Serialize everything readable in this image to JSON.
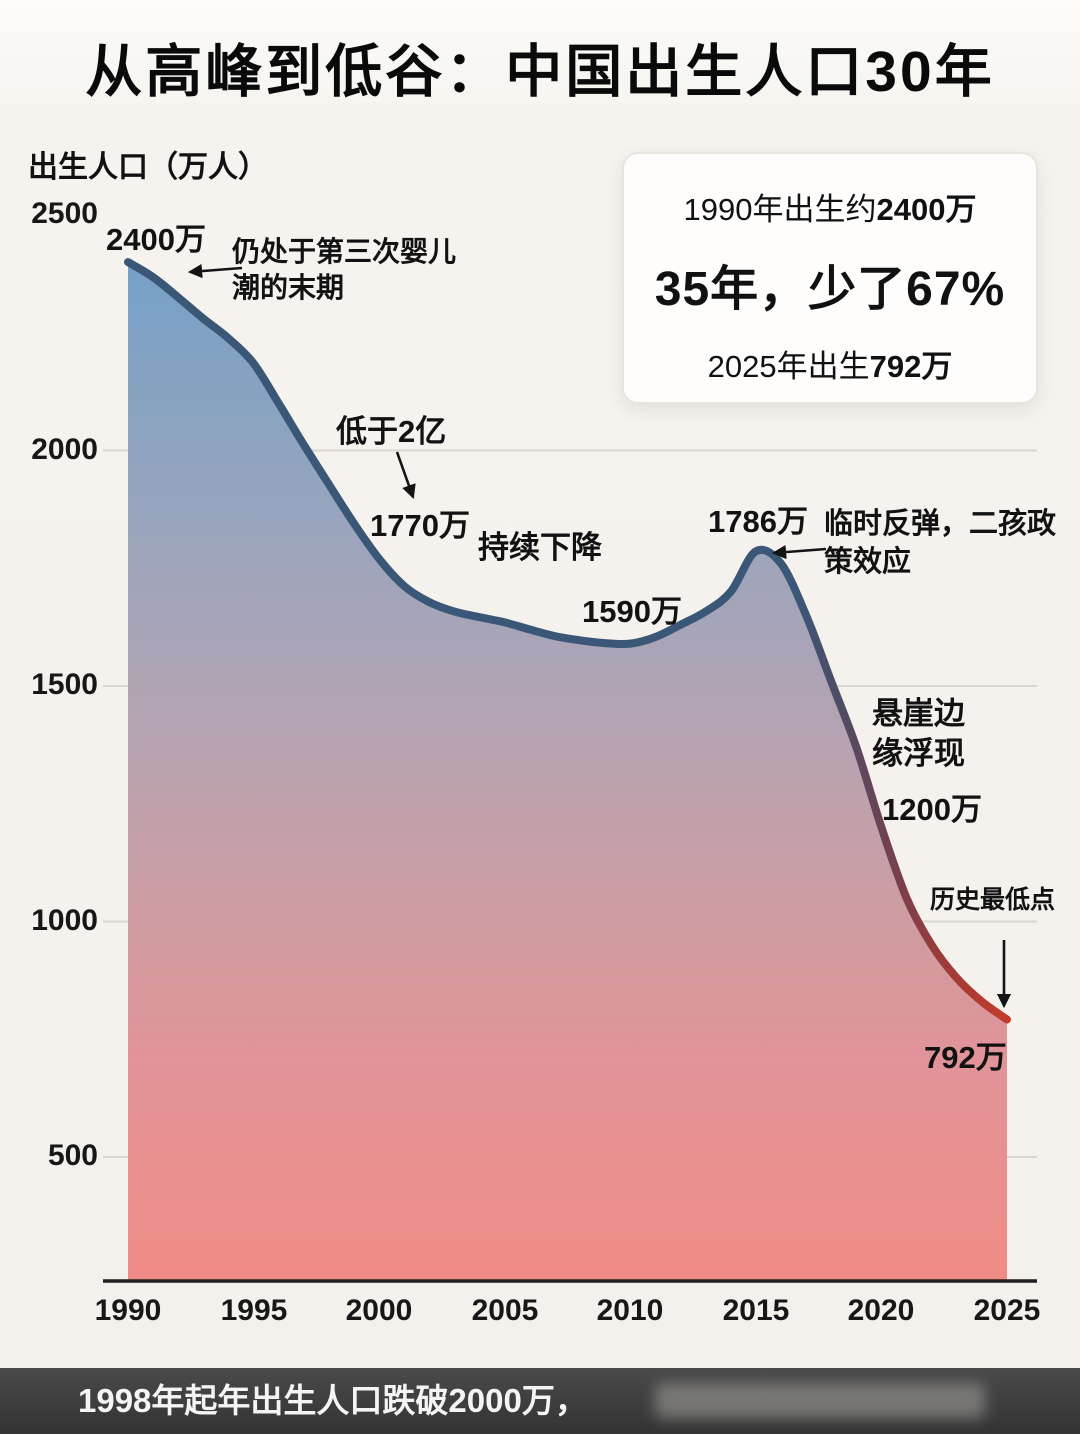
{
  "page": {
    "title": "从高峰到低谷：中国出生人口30年"
  },
  "y_axis": {
    "label": "出生人口（万人）",
    "ticks": [
      2500,
      2000,
      1500,
      1000,
      500
    ]
  },
  "x_axis": {
    "ticks": [
      1990,
      1995,
      2000,
      2005,
      2010,
      2015,
      2020,
      2025
    ]
  },
  "chart_data": {
    "type": "area",
    "title": "从高峰到低谷：中国出生人口30年",
    "xlabel": "",
    "ylabel": "出生人口（万人）",
    "x": [
      1990,
      1991,
      1992,
      1993,
      1994,
      1995,
      1996,
      1997,
      1998,
      1999,
      2000,
      2001,
      2002,
      2003,
      2004,
      2005,
      2006,
      2007,
      2008,
      2009,
      2010,
      2011,
      2012,
      2013,
      2014,
      2015,
      2016,
      2017,
      2018,
      2019,
      2020,
      2021,
      2022,
      2023,
      2024,
      2025
    ],
    "values": [
      2400,
      2368,
      2325,
      2280,
      2238,
      2185,
      2100,
      2012,
      1928,
      1845,
      1770,
      1712,
      1678,
      1658,
      1646,
      1635,
      1620,
      1606,
      1597,
      1591,
      1590,
      1604,
      1630,
      1658,
      1700,
      1786,
      1760,
      1650,
      1510,
      1370,
      1200,
      1050,
      950,
      880,
      830,
      792
    ],
    "x_ticks": [
      1990,
      1995,
      2000,
      2005,
      2010,
      2015,
      2020,
      2025
    ],
    "y_ticks": [
      2500,
      2000,
      1500,
      1000,
      500
    ],
    "ylim": [
      240,
      2500
    ],
    "grid": "horizontal",
    "legend": "none",
    "key_points": [
      {
        "year": 1990,
        "value": 2400,
        "label": "2400万"
      },
      {
        "year": 2000,
        "value": 1770,
        "label": "1770万"
      },
      {
        "year": 2010,
        "value": 1590,
        "label": "1590万"
      },
      {
        "year": 2015,
        "value": 1786,
        "label": "1786万"
      },
      {
        "year": 2020,
        "value": 1200,
        "label": "1200万"
      },
      {
        "year": 2025,
        "value": 792,
        "label": "792万"
      }
    ],
    "annotations": [
      "仍处于第三次婴儿潮的末期",
      "低于2亿",
      "持续下降",
      "临时反弹，二孩政策效应",
      "悬崖边缘浮现",
      "历史最低点"
    ]
  },
  "labels": {
    "v2400": "2400万",
    "baby_boom": "仍处于第三次婴儿\n潮的末期",
    "below2": "低于2亿",
    "v1770": "1770万",
    "decline": "持续下降",
    "v1590": "1590万",
    "v1786": "1786万",
    "rebound": "临时反弹，二孩政\n策效应",
    "cliff": "悬崖边\n缘浮现",
    "v1200": "1200万",
    "lowest": "历史最低点",
    "v792": "792万"
  },
  "infobox": {
    "line1_prefix": "1990年出生约",
    "line1_bold": "2400万",
    "line2": "35年，少了67%",
    "line3_prefix": "2025年出生",
    "line3_bold": "792万"
  },
  "footer": {
    "text": "1998年起年出生人口跌破2000万，"
  },
  "colors": {
    "line_navy": "#3a5777",
    "line_red": "#c23b2c",
    "fill_top": "#6fa0cb",
    "fill_bottom": "#f08c85",
    "grid": "#d9d5cf",
    "footer_bg": "#3c3c3c"
  }
}
